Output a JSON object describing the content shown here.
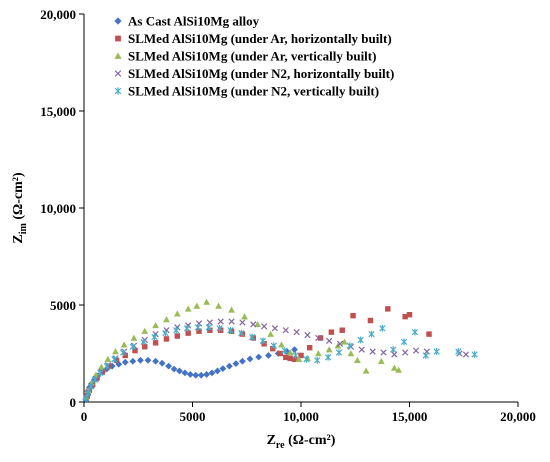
{
  "chart_data": {
    "type": "scatter",
    "title": "",
    "xlabel": {
      "main": "Z",
      "sub": "re",
      "unit": " (Ω-cm²)"
    },
    "ylabel": {
      "main": "Z",
      "sub": "im",
      "unit": " (Ω-cm²)"
    },
    "xlim": [
      0,
      20000
    ],
    "ylim": [
      0,
      20000
    ],
    "xticks": [
      0,
      5000,
      10000,
      15000,
      20000
    ],
    "yticks": [
      0,
      5000,
      10000,
      15000,
      20000
    ],
    "xtick_labels": [
      "0",
      "5000",
      "10,000",
      "15,000",
      "20,000"
    ],
    "ytick_labels": [
      "0",
      "5000",
      "10,000",
      "15,000",
      "20,000"
    ],
    "grid": false,
    "legend_position": "top-right",
    "series": [
      {
        "name": "As Cast AlSi10Mg alloy",
        "marker": "diamond",
        "color": "#4472C4",
        "points": [
          [
            80,
            150
          ],
          [
            120,
            350
          ],
          [
            180,
            550
          ],
          [
            250,
            750
          ],
          [
            350,
            950
          ],
          [
            480,
            1150
          ],
          [
            650,
            1350
          ],
          [
            850,
            1550
          ],
          [
            1050,
            1700
          ],
          [
            1300,
            1850
          ],
          [
            1600,
            1950
          ],
          [
            1900,
            2050
          ],
          [
            2250,
            2100
          ],
          [
            2600,
            2150
          ],
          [
            2950,
            2150
          ],
          [
            3300,
            2100
          ],
          [
            3600,
            2000
          ],
          [
            3900,
            1850
          ],
          [
            4150,
            1700
          ],
          [
            4400,
            1600
          ],
          [
            4650,
            1500
          ],
          [
            4900,
            1420
          ],
          [
            5150,
            1380
          ],
          [
            5400,
            1380
          ],
          [
            5650,
            1420
          ],
          [
            5900,
            1500
          ],
          [
            6150,
            1600
          ],
          [
            6400,
            1720
          ],
          [
            6700,
            1850
          ],
          [
            7000,
            1980
          ],
          [
            7300,
            2100
          ],
          [
            7650,
            2220
          ],
          [
            8050,
            2320
          ],
          [
            8500,
            2400
          ],
          [
            8950,
            2500
          ],
          [
            9350,
            2600
          ],
          [
            9700,
            2700
          ]
        ]
      },
      {
        "name": "SLMed AlSi10Mg (under Ar, horizontally built)",
        "marker": "square",
        "color": "#C0504D",
        "points": [
          [
            150,
            300
          ],
          [
            250,
            600
          ],
          [
            400,
            900
          ],
          [
            600,
            1250
          ],
          [
            850,
            1550
          ],
          [
            1150,
            1850
          ],
          [
            1500,
            2150
          ],
          [
            1900,
            2400
          ],
          [
            2350,
            2650
          ],
          [
            2800,
            2850
          ],
          [
            3300,
            3050
          ],
          [
            3800,
            3250
          ],
          [
            4300,
            3400
          ],
          [
            4800,
            3550
          ],
          [
            5300,
            3650
          ],
          [
            5800,
            3700
          ],
          [
            6300,
            3700
          ],
          [
            6800,
            3650
          ],
          [
            7300,
            3500
          ],
          [
            7800,
            3300
          ],
          [
            8300,
            3000
          ],
          [
            8700,
            2750
          ],
          [
            9050,
            2500
          ],
          [
            9300,
            2300
          ],
          [
            9500,
            2250
          ],
          [
            9700,
            2200
          ],
          [
            10000,
            2400
          ],
          [
            10400,
            2800
          ],
          [
            10900,
            3300
          ],
          [
            11400,
            3600
          ],
          [
            11900,
            3700
          ],
          [
            12400,
            4450
          ],
          [
            13200,
            4200
          ],
          [
            14000,
            4800
          ],
          [
            14800,
            4400
          ],
          [
            15000,
            4500
          ],
          [
            15900,
            3500
          ]
        ]
      },
      {
        "name": "SLMed AlSi10Mg (under Ar, vertically built)",
        "marker": "triangle",
        "color": "#9BBB59",
        "points": [
          [
            100,
            250
          ],
          [
            200,
            600
          ],
          [
            350,
            1000
          ],
          [
            550,
            1400
          ],
          [
            800,
            1800
          ],
          [
            1100,
            2200
          ],
          [
            1450,
            2600
          ],
          [
            1850,
            2950
          ],
          [
            2300,
            3300
          ],
          [
            2800,
            3650
          ],
          [
            3300,
            3950
          ],
          [
            3800,
            4250
          ],
          [
            4300,
            4550
          ],
          [
            4800,
            4800
          ],
          [
            5200,
            4950
          ],
          [
            5650,
            5150
          ],
          [
            6200,
            4950
          ],
          [
            6800,
            4750
          ],
          [
            7400,
            4400
          ],
          [
            8000,
            4000
          ],
          [
            8600,
            3500
          ],
          [
            9100,
            2950
          ],
          [
            9500,
            2550
          ],
          [
            9900,
            2200
          ],
          [
            10300,
            2250
          ],
          [
            10800,
            2500
          ],
          [
            11300,
            2700
          ],
          [
            11700,
            2900
          ],
          [
            12000,
            3100
          ],
          [
            12300,
            2500
          ],
          [
            12600,
            2150
          ],
          [
            13000,
            1600
          ],
          [
            13700,
            2100
          ],
          [
            14300,
            1750
          ],
          [
            14500,
            1650
          ]
        ]
      },
      {
        "name": "SLMed AlSi10Mg (under N2, horizontally built)",
        "marker": "x",
        "color": "#8064A2",
        "points": [
          [
            100,
            200
          ],
          [
            200,
            500
          ],
          [
            350,
            850
          ],
          [
            550,
            1200
          ],
          [
            800,
            1550
          ],
          [
            1100,
            1900
          ],
          [
            1450,
            2250
          ],
          [
            1850,
            2600
          ],
          [
            2300,
            2900
          ],
          [
            2800,
            3200
          ],
          [
            3300,
            3500
          ],
          [
            3800,
            3700
          ],
          [
            4300,
            3850
          ],
          [
            4800,
            3950
          ],
          [
            5300,
            4050
          ],
          [
            5800,
            4100
          ],
          [
            6300,
            4150
          ],
          [
            6800,
            4150
          ],
          [
            7300,
            4100
          ],
          [
            7800,
            4000
          ],
          [
            8300,
            3900
          ],
          [
            8800,
            3800
          ],
          [
            9300,
            3700
          ],
          [
            9800,
            3600
          ],
          [
            10300,
            3450
          ],
          [
            10800,
            3300
          ],
          [
            11300,
            3150
          ],
          [
            11800,
            3000
          ],
          [
            12300,
            2850
          ],
          [
            12800,
            2700
          ],
          [
            13300,
            2600
          ],
          [
            13800,
            2550
          ],
          [
            14300,
            2450
          ],
          [
            14800,
            2550
          ],
          [
            15300,
            2650
          ],
          [
            15800,
            2600
          ],
          [
            17300,
            2500
          ],
          [
            17600,
            2450
          ]
        ]
      },
      {
        "name": "SLMed AlSi10Mg (under N2, vertically built)",
        "marker": "star",
        "color": "#4BACC6",
        "points": [
          [
            90,
            180
          ],
          [
            180,
            450
          ],
          [
            320,
            800
          ],
          [
            500,
            1150
          ],
          [
            750,
            1500
          ],
          [
            1050,
            1850
          ],
          [
            1400,
            2200
          ],
          [
            1800,
            2550
          ],
          [
            2250,
            2850
          ],
          [
            2750,
            3100
          ],
          [
            3250,
            3350
          ],
          [
            3750,
            3550
          ],
          [
            4250,
            3700
          ],
          [
            4750,
            3800
          ],
          [
            5250,
            3850
          ],
          [
            5750,
            3850
          ],
          [
            6250,
            3800
          ],
          [
            6750,
            3700
          ],
          [
            7250,
            3550
          ],
          [
            7750,
            3350
          ],
          [
            8250,
            3150
          ],
          [
            8750,
            2900
          ],
          [
            9250,
            2650
          ],
          [
            9750,
            2400
          ],
          [
            10250,
            2200
          ],
          [
            10750,
            2150
          ],
          [
            11250,
            2300
          ],
          [
            11750,
            2550
          ],
          [
            12250,
            2900
          ],
          [
            12750,
            3200
          ],
          [
            13250,
            3500
          ],
          [
            13750,
            3800
          ],
          [
            14250,
            2700
          ],
          [
            14750,
            3100
          ],
          [
            15250,
            3600
          ],
          [
            15750,
            2400
          ],
          [
            16250,
            2600
          ],
          [
            17250,
            2600
          ],
          [
            18000,
            2450
          ]
        ]
      }
    ]
  }
}
